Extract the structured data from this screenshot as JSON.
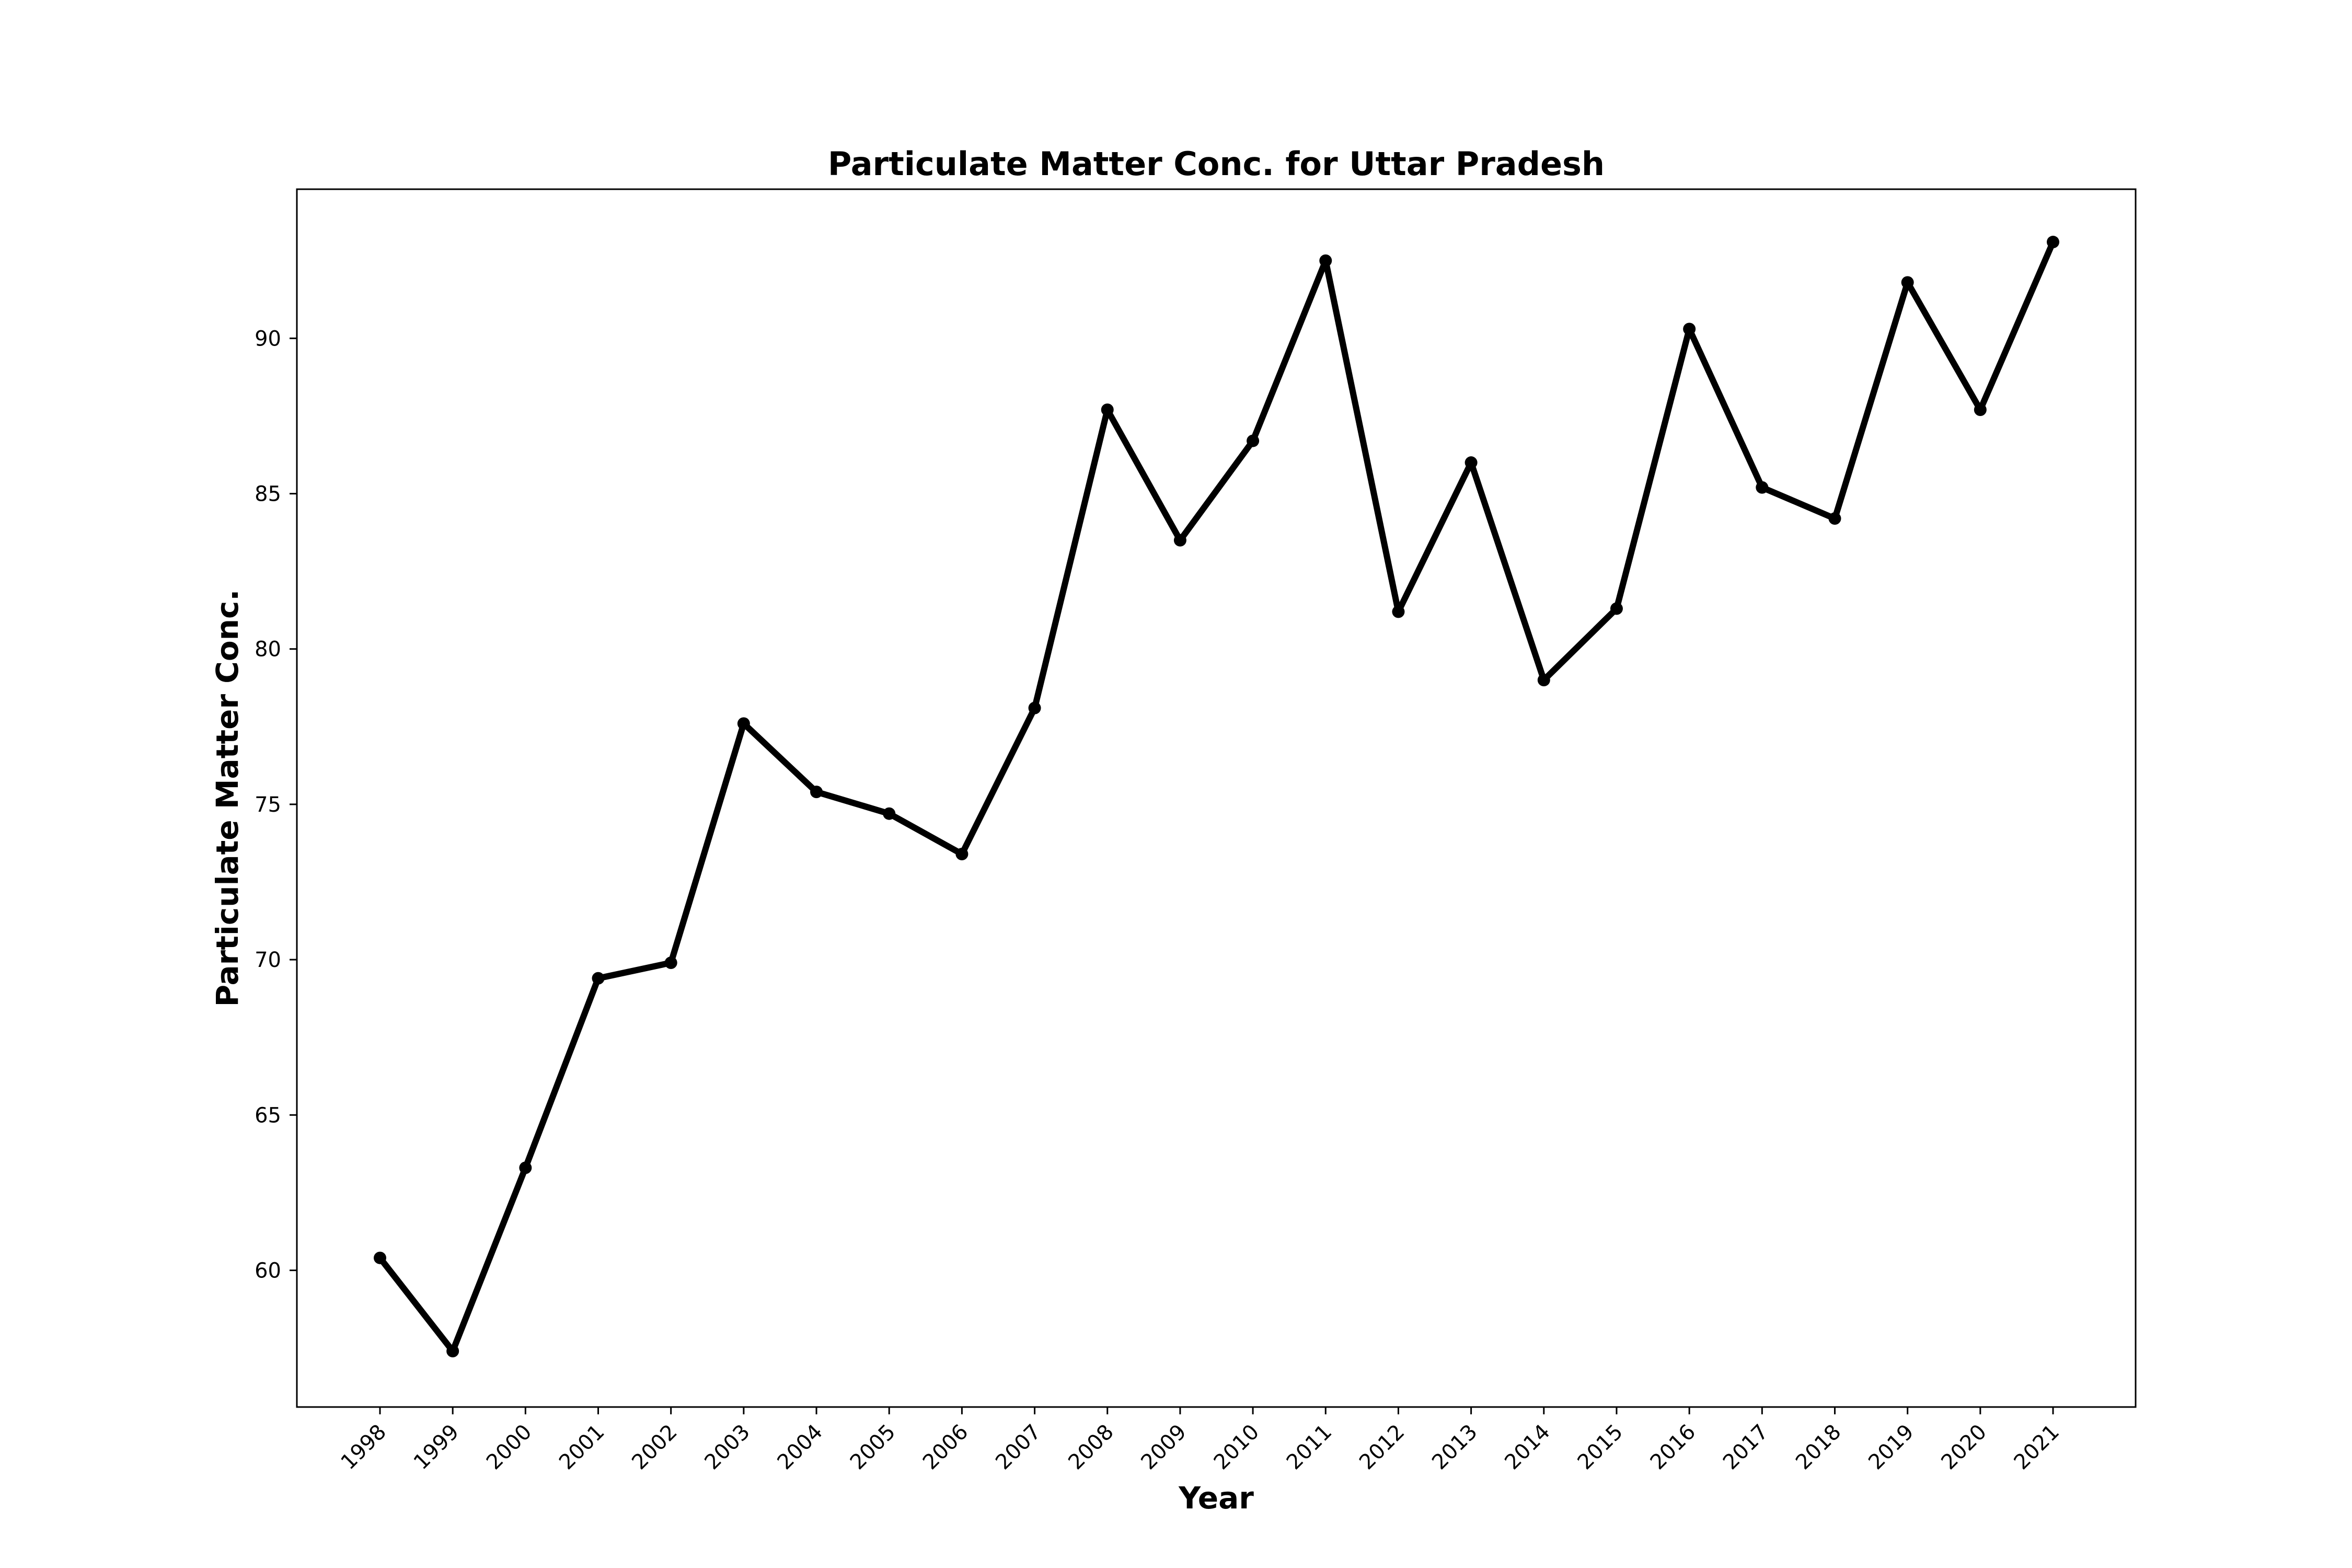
{
  "chart_data": {
    "type": "line",
    "title": "Particulate Matter Conc. for Uttar Pradesh",
    "xlabel": "Year",
    "ylabel": "Particulate Matter Conc.",
    "x": [
      "1998",
      "1999",
      "2000",
      "2001",
      "2002",
      "2003",
      "2004",
      "2005",
      "2006",
      "2007",
      "2008",
      "2009",
      "2010",
      "2011",
      "2012",
      "2013",
      "2014",
      "2015",
      "2016",
      "2017",
      "2018",
      "2019",
      "2020",
      "2021"
    ],
    "series": [
      {
        "values": [
          60.4,
          57.4,
          63.3,
          69.4,
          69.9,
          77.6,
          75.4,
          74.7,
          73.4,
          78.1,
          87.7,
          83.5,
          86.7,
          92.5,
          81.2,
          86.0,
          79.0,
          81.3,
          90.3,
          85.2,
          84.2,
          91.8,
          87.7,
          93.1
        ]
      }
    ],
    "ylim": [
      55.6,
      94.8
    ],
    "yticks": [
      60,
      65,
      70,
      75,
      80,
      85,
      90
    ],
    "grid": false,
    "line_color": "#000000",
    "marker_color": "#000000"
  }
}
